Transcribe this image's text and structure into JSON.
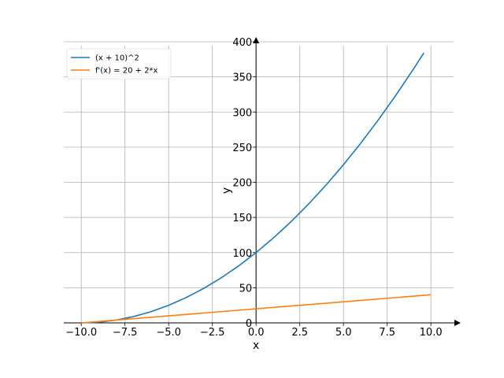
{
  "chart_data": {
    "type": "line",
    "title": "",
    "xlabel": "x",
    "ylabel": "y",
    "xlim": [
      -11.0,
      11.3
    ],
    "ylim": [
      0,
      400
    ],
    "grid": true,
    "legend_position": "top-left",
    "x_ticks": [
      -10.0,
      -7.5,
      -5.0,
      -2.5,
      0.0,
      2.5,
      5.0,
      7.5,
      10.0
    ],
    "x_tick_labels": [
      "−10.0",
      "−7.5",
      "−5.0",
      "−2.5",
      "0.0",
      "2.5",
      "5.0",
      "7.5",
      "10.0"
    ],
    "y_ticks": [
      0,
      50,
      100,
      150,
      200,
      250,
      300,
      350,
      400
    ],
    "y_tick_labels": [
      "0",
      "50",
      "100",
      "150",
      "200",
      "250",
      "300",
      "350",
      "400"
    ],
    "series": [
      {
        "name": "(x + 10)^2",
        "color": "#1f77b4",
        "x": [
          -10.0,
          -9.0,
          -8.0,
          -7.0,
          -6.0,
          -5.0,
          -4.0,
          -3.0,
          -2.0,
          -1.0,
          0.0,
          1.0,
          2.0,
          3.0,
          4.0,
          5.0,
          6.0,
          7.0,
          8.0,
          9.0,
          9.6
        ],
        "values": [
          0,
          1,
          4,
          9,
          16,
          25,
          36,
          49,
          64,
          81,
          100,
          121,
          144,
          169,
          196,
          225,
          256,
          289,
          324,
          361,
          384.2
        ]
      },
      {
        "name": "f'(x) = 20 + 2*x",
        "color": "#ff7f0e",
        "x": [
          -10.0,
          10.0
        ],
        "values": [
          0,
          40
        ]
      }
    ]
  }
}
